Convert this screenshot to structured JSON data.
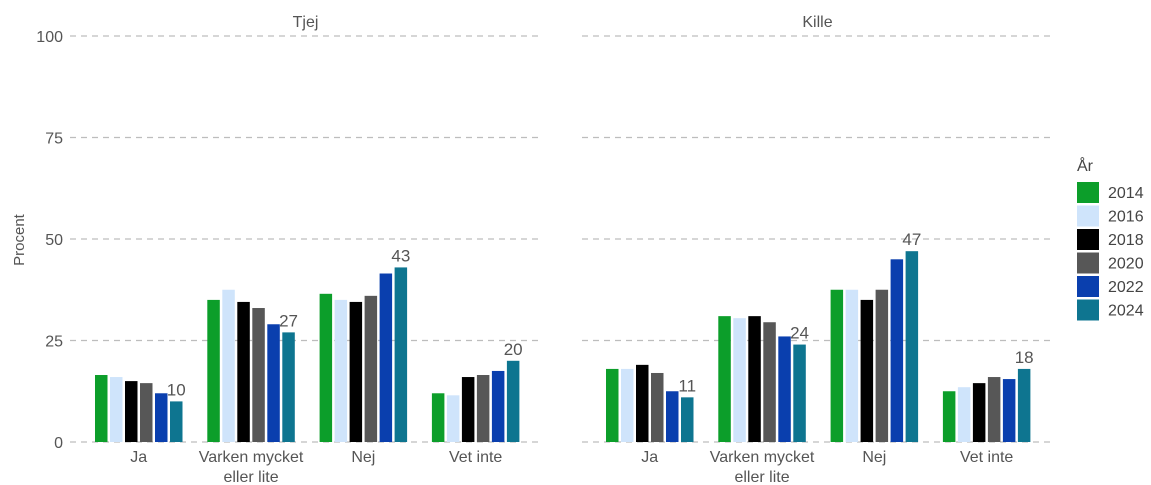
{
  "chart_data": {
    "type": "bar",
    "ylabel": "Procent",
    "ylim": [
      0,
      100
    ],
    "yticks": [
      "0",
      "25",
      "50",
      "75",
      "100"
    ],
    "legend_title": "År",
    "legend_position": "right",
    "grid": true,
    "categories": [
      "Ja",
      "Varken mycket eller lite",
      "Nej",
      "Vet inte"
    ],
    "category_lines": [
      [
        "Ja"
      ],
      [
        "Varken mycket",
        "eller lite"
      ],
      [
        "Nej"
      ],
      [
        "Vet inte"
      ]
    ],
    "years": [
      "2014",
      "2016",
      "2018",
      "2020",
      "2022",
      "2024"
    ],
    "colors": [
      "#0c9e2a",
      "#cfe4fb",
      "#000000",
      "#575757",
      "#0a3fae",
      "#0e7590"
    ],
    "panels": [
      {
        "title": "Tjej",
        "series": [
          {
            "name": "2014",
            "values": [
              16.5,
              35,
              36.5,
              12
            ]
          },
          {
            "name": "2016",
            "values": [
              16,
              37.5,
              35,
              11.5
            ]
          },
          {
            "name": "2018",
            "values": [
              15,
              34.5,
              34.5,
              16
            ]
          },
          {
            "name": "2020",
            "values": [
              14.5,
              33,
              36,
              16.5
            ]
          },
          {
            "name": "2022",
            "values": [
              12,
              29,
              41.5,
              17.5
            ]
          },
          {
            "name": "2024",
            "values": [
              10,
              27,
              43,
              20
            ]
          }
        ],
        "data_labels": [
          "10",
          "27",
          "43",
          "20"
        ]
      },
      {
        "title": "Kille",
        "series": [
          {
            "name": "2014",
            "values": [
              18,
              31,
              37.5,
              12.5
            ]
          },
          {
            "name": "2016",
            "values": [
              18,
              30.5,
              37.5,
              13.5
            ]
          },
          {
            "name": "2018",
            "values": [
              19,
              31,
              35,
              14.5
            ]
          },
          {
            "name": "2020",
            "values": [
              17,
              29.5,
              37.5,
              16
            ]
          },
          {
            "name": "2022",
            "values": [
              12.5,
              26,
              45,
              15.5
            ]
          },
          {
            "name": "2024",
            "values": [
              11,
              24,
              47,
              18
            ]
          }
        ],
        "data_labels": [
          "11",
          "24",
          "47",
          "18"
        ]
      }
    ]
  }
}
